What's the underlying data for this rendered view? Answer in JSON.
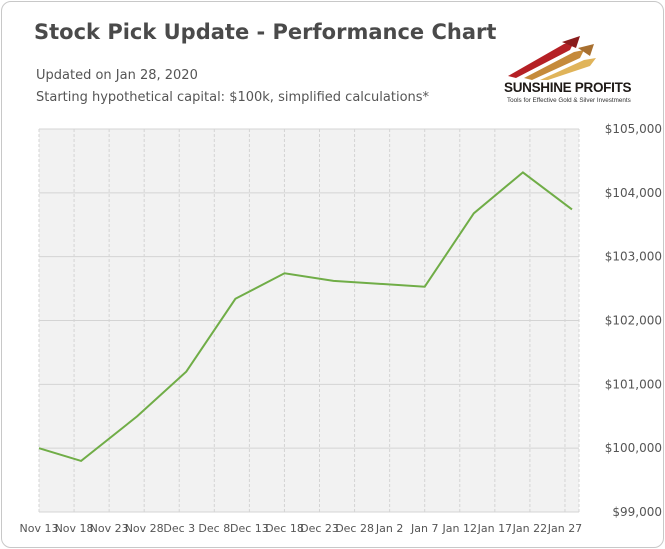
{
  "title": "Stock Pick Update - Performance Chart",
  "updated": "Updated on Jan 28, 2020",
  "note": "Starting hypothetical capital: $100k, simplified calculations*",
  "logo": {
    "name": "SUNSHINE PROFITS",
    "tagline": "Tools for Effective Gold & Silver Investments"
  },
  "colors": {
    "line": "#70ad47",
    "plot_bg": "#f2f2f2",
    "grid": "#d4d4d4"
  },
  "chart_data": {
    "type": "line",
    "title": "Stock Pick Update - Performance Chart",
    "xlabel": "",
    "ylabel": "",
    "ylim": [
      99000,
      105000
    ],
    "y_ticks": [
      "$99,000",
      "$100,000",
      "$101,000",
      "$102,000",
      "$103,000",
      "$104,000",
      "$105,000"
    ],
    "x_ticks": [
      "Nov 13",
      "Nov 18",
      "Nov 23",
      "Nov 28",
      "Dec 3",
      "Dec 8",
      "Dec 13",
      "Dec 18",
      "Dec 23",
      "Dec 28",
      "Jan 2",
      "Jan 7",
      "Jan 12",
      "Jan 17",
      "Jan 22",
      "Jan 27"
    ],
    "grid": true,
    "legend": "none",
    "series": [
      {
        "x": [
          "2019-11-13",
          "2019-11-19",
          "2019-11-27",
          "2019-12-04",
          "2019-12-11",
          "2019-12-18",
          "2019-12-25",
          "2020-01-07",
          "2020-01-14",
          "2020-01-21",
          "2020-01-28"
        ],
        "values": [
          100000,
          99800,
          100500,
          101200,
          102340,
          102740,
          102620,
          102530,
          103680,
          104320,
          103740
        ]
      }
    ]
  }
}
